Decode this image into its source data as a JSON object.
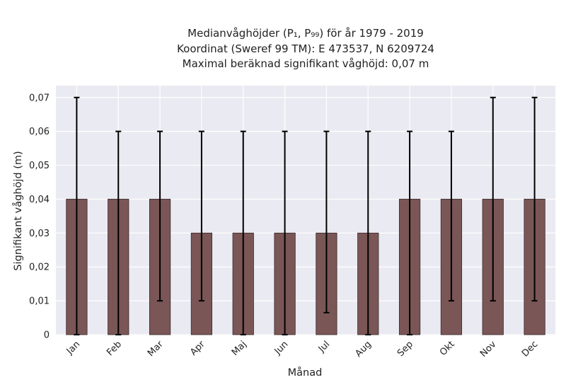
{
  "chart_data": {
    "type": "bar",
    "title": [
      "Medianvåghöjder (P₁, P₉₉) för år 1979 - 2019",
      "Koordinat (Sweref 99 TM): E 473537, N 6209724",
      "Maximal beräknad signifikant våghöjd: 0,07 m"
    ],
    "xlabel": "Månad",
    "ylabel": "Signifikant våghöjd (m)",
    "categories": [
      "Jan",
      "Feb",
      "Mar",
      "Apr",
      "Maj",
      "Jun",
      "Jul",
      "Aug",
      "Sep",
      "Okt",
      "Nov",
      "Dec"
    ],
    "values": [
      0.04,
      0.04,
      0.04,
      0.03,
      0.03,
      0.03,
      0.03,
      0.03,
      0.04,
      0.04,
      0.04,
      0.04
    ],
    "error_low": [
      0.0,
      0.0,
      0.01,
      0.01,
      0.0,
      0.0,
      0.0065,
      0.0,
      0.0,
      0.01,
      0.01,
      0.01
    ],
    "error_high": [
      0.07,
      0.06,
      0.06,
      0.06,
      0.06,
      0.06,
      0.06,
      0.06,
      0.06,
      0.06,
      0.07,
      0.07
    ],
    "ylim": [
      0,
      0.0735
    ],
    "yticks": [
      0,
      0.01,
      0.02,
      0.03,
      0.04,
      0.05,
      0.06,
      0.07
    ],
    "ytick_labels": [
      "0",
      "0,01",
      "0,02",
      "0,03",
      "0,04",
      "0,05",
      "0,06",
      "0,07"
    ],
    "grid": true,
    "colors": {
      "background": "#eaeaf2",
      "bar": "#7a5656",
      "bar_edge": "#3a2a2a",
      "errorbar": "#000000",
      "grid": "#ffffff"
    }
  }
}
